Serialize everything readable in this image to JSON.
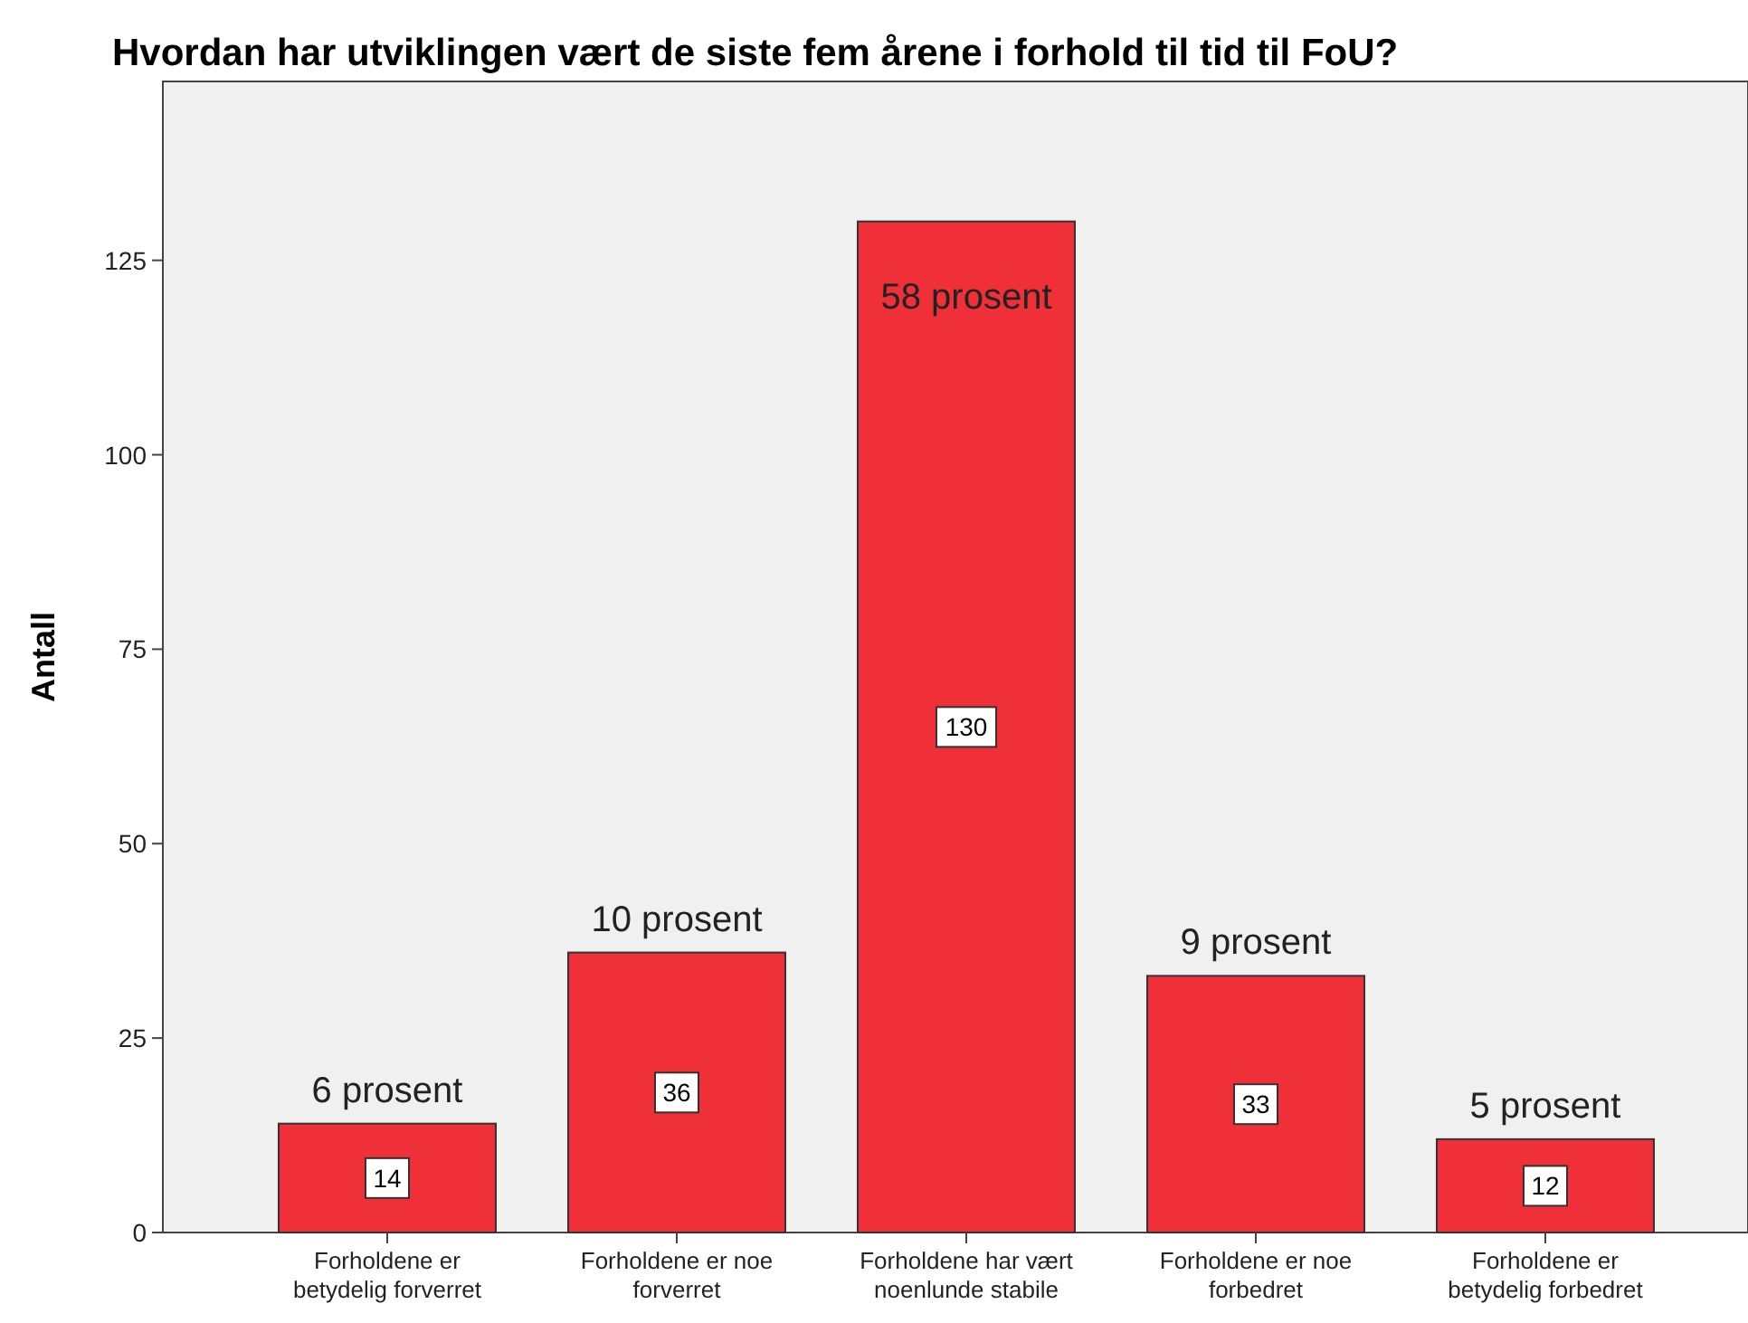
{
  "chart_data": {
    "type": "bar",
    "title": "Hvordan har utviklingen vært de siste fem årene i forhold til tid til FoU?",
    "ylabel": "Antall",
    "categories": [
      "Forholdene er betydelig forverret",
      "Forholdene er noe forverret",
      "Forholdene har vært noenlunde stabile",
      "Forholdene er noe forbedret",
      "Forholdene er betydelig forbedret"
    ],
    "values": [
      14,
      36,
      130,
      33,
      12
    ],
    "color": "#ef3038",
    "ylim": [
      0,
      148
    ],
    "yticks": [
      0,
      25,
      50,
      75,
      100,
      125
    ],
    "grid": false,
    "data_labels": true,
    "annotations": [
      {
        "text": "6 prosent",
        "x": "Forholdene er betydelig forverret",
        "y": 14
      },
      {
        "text": "10 prosent",
        "x": "Forholdene er noe forverret",
        "y": 36
      },
      {
        "text": "58 prosent",
        "x": "Forholdene har vært noenlunde stabile",
        "y": 130
      },
      {
        "text": "9 prosent",
        "x": "Forholdene er noe forbedret",
        "y": 33
      },
      {
        "text": "5 prosent",
        "x": "Forholdene er betydelig forbedret",
        "y": 12
      }
    ]
  }
}
